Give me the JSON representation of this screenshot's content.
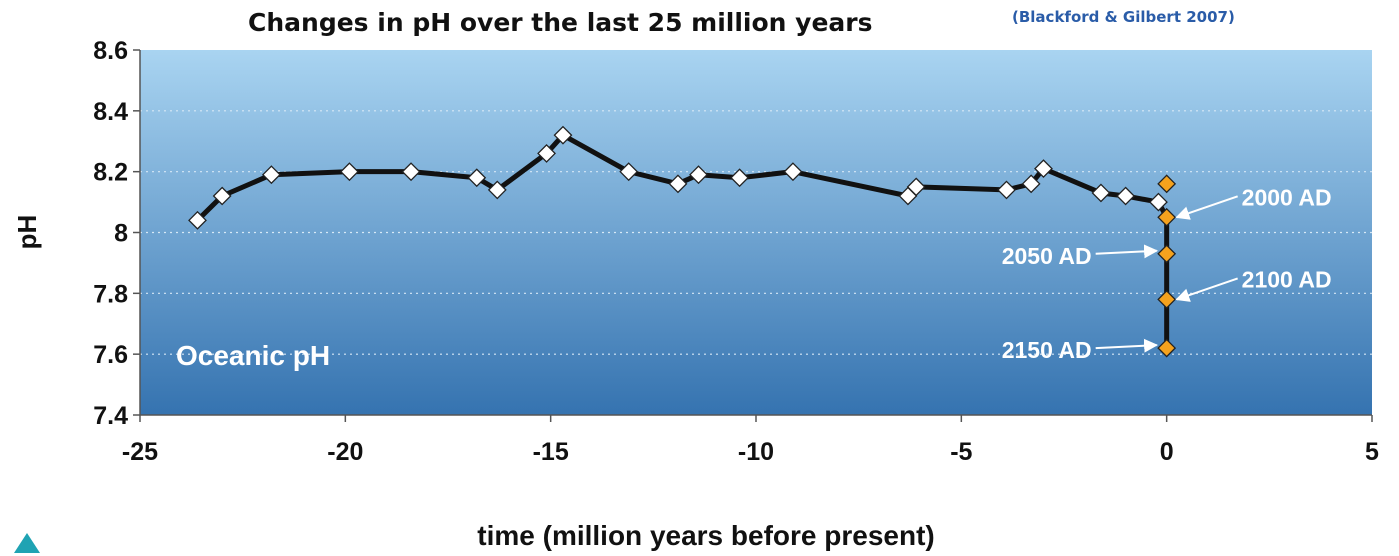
{
  "chart_data": {
    "type": "line",
    "title": "Changes in pH over the last 25 million years",
    "subtitle": "(Blackford & Gilbert 2007)",
    "xlabel": "time (million years before present)",
    "ylabel": "pH",
    "xlim": [
      -25,
      5
    ],
    "ylim": [
      7.4,
      8.6
    ],
    "xticks": [
      "-25",
      "-20",
      "-15",
      "-10",
      "-5",
      "0",
      "5"
    ],
    "yticks": [
      "7.4",
      "7.6",
      "7.8",
      "8",
      "8.2",
      "8.4",
      "8.6"
    ],
    "grid": "horizontal dotted",
    "panel_label": "Oceanic pH",
    "series": [
      {
        "marker": "diamond",
        "color": "#ffffff",
        "points": [
          [
            -23.6,
            8.04
          ],
          [
            -23.0,
            8.12
          ],
          [
            -21.8,
            8.19
          ],
          [
            -19.9,
            8.2
          ],
          [
            -18.4,
            8.2
          ],
          [
            -16.8,
            8.18
          ],
          [
            -16.3,
            8.14
          ],
          [
            -15.1,
            8.26
          ],
          [
            -14.7,
            8.32
          ],
          [
            -13.1,
            8.2
          ],
          [
            -11.9,
            8.16
          ],
          [
            -11.4,
            8.19
          ],
          [
            -10.4,
            8.18
          ],
          [
            -9.1,
            8.2
          ],
          [
            -6.3,
            8.12
          ],
          [
            -6.1,
            8.15
          ],
          [
            -3.9,
            8.14
          ],
          [
            -3.3,
            8.16
          ],
          [
            -3.0,
            8.21
          ],
          [
            -1.6,
            8.13
          ],
          [
            -1.0,
            8.12
          ],
          [
            -0.2,
            8.1
          ]
        ]
      },
      {
        "marker": "diamond",
        "color": "#f5a21d",
        "points": [
          [
            0,
            8.16
          ],
          [
            0,
            8.05
          ],
          [
            0,
            7.93
          ],
          [
            0,
            7.78
          ],
          [
            0,
            7.62
          ]
        ]
      }
    ],
    "annotations": [
      {
        "text": "2000 AD",
        "x": 0,
        "y": 8.05
      },
      {
        "text": "2050 AD",
        "x": 0,
        "y": 7.93
      },
      {
        "text": "2100 AD",
        "x": 0,
        "y": 7.78
      },
      {
        "text": "2150 AD",
        "x": 0,
        "y": 7.62
      }
    ],
    "colors": {
      "panel_top": "#a9d4f1",
      "panel_bottom": "#3573b0",
      "line": "#111111",
      "annotation_text": "#ffffff"
    }
  }
}
